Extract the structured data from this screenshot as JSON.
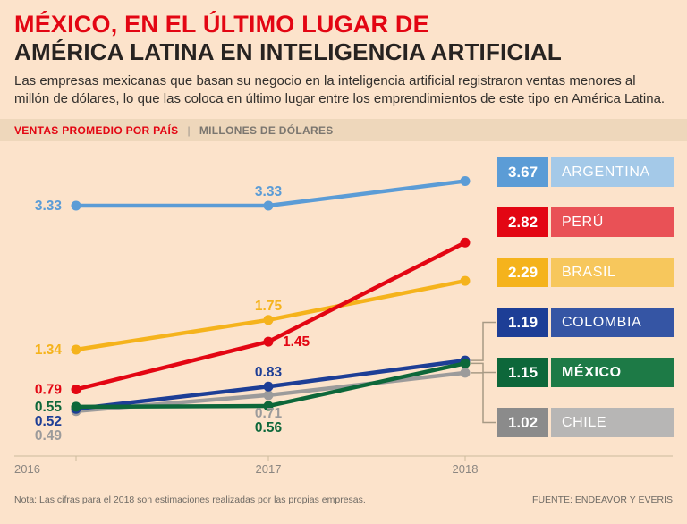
{
  "title": {
    "line1": "MÉXICO, EN EL ÚLTIMO LUGAR DE",
    "line2": "AMÉRICA LATINA EN INTELIGENCIA ARTIFICIAL"
  },
  "intro": "Las empresas mexicanas que basan su negocio en la inteligencia artificial registraron ventas menores al millón de dólares, lo que las coloca en último lugar entre los emprendimientos de este tipo en América Latina.",
  "band": {
    "label": "VENTAS PROMEDIO POR PAÍS",
    "separator": "|",
    "sublabel": "MILLONES DE DÓLARES"
  },
  "chart_data": {
    "type": "line",
    "title": "VENTAS PROMEDIO POR PAÍS",
    "ylabel": "MILLONES DE DÓLARES",
    "x": [
      "2016",
      "2017",
      "2018"
    ],
    "ylim": [
      0.4,
      3.8
    ],
    "grid": false,
    "legend_position": "right",
    "series": [
      {
        "name": "ARGENTINA",
        "values": [
          3.33,
          3.33,
          3.67
        ],
        "color": "#5b9cd6",
        "label_positions": [
          "left",
          "above",
          "none"
        ],
        "connector": false,
        "chip": {
          "value_bg": "#5b9cd6",
          "label_bg": "#a4c9e8",
          "bold": false
        }
      },
      {
        "name": "PERÚ",
        "values": [
          0.79,
          1.45,
          2.82
        ],
        "color": "#e30613",
        "label_positions": [
          "left",
          "right",
          "none"
        ],
        "connector": false,
        "chip": {
          "value_bg": "#e30613",
          "label_bg": "#e95156",
          "bold": false
        }
      },
      {
        "name": "BRASIL",
        "values": [
          1.34,
          1.75,
          2.29
        ],
        "color": "#f5b31c",
        "label_positions": [
          "left",
          "above",
          "none"
        ],
        "connector": false,
        "chip": {
          "value_bg": "#f5b31c",
          "label_bg": "#f7c75c",
          "bold": false
        }
      },
      {
        "name": "COLOMBIA",
        "values": [
          0.52,
          0.83,
          1.19
        ],
        "color": "#1d3e96",
        "label_positions": [
          "left",
          "above",
          "none"
        ],
        "connector": true,
        "chip": {
          "value_bg": "#1d3e96",
          "label_bg": "#3555a4",
          "bold": false
        }
      },
      {
        "name": "MÉXICO",
        "values": [
          0.55,
          0.56,
          1.15
        ],
        "color": "#0d673a",
        "label_positions": [
          "left",
          "below",
          "none"
        ],
        "connector": true,
        "chip": {
          "value_bg": "#0d673a",
          "label_bg": "#1d7a46",
          "bold": true
        }
      },
      {
        "name": "CHILE",
        "values": [
          0.49,
          0.71,
          1.02
        ],
        "color": "#9c9b9b",
        "label_positions": [
          "left",
          "below",
          "none"
        ],
        "connector": true,
        "chip": {
          "value_bg": "#8b8b8b",
          "label_bg": "#b7b6b5",
          "bold": false
        }
      }
    ]
  },
  "footer": {
    "note": "Nota: Las cifras para el 2018 son estimaciones realizadas por las propias empresas.",
    "source": "FUENTE: ENDEAVOR Y EVERIS"
  }
}
